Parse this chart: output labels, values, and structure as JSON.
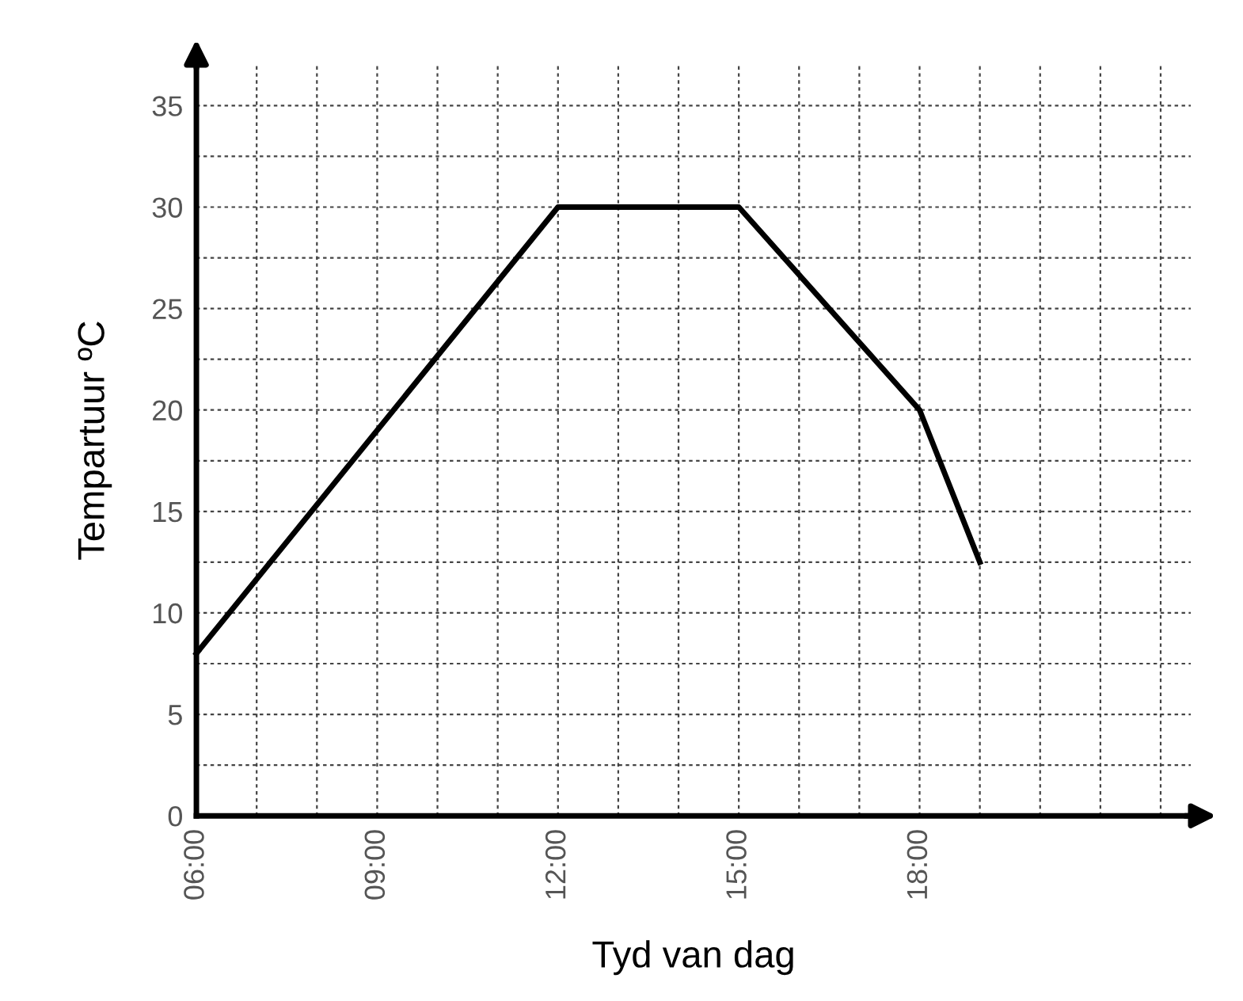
{
  "chart_data": {
    "type": "line",
    "xlabel": "Tyd van dag",
    "ylabel": "Tempartuur ºC",
    "x": [
      6,
      12,
      15,
      18,
      19
    ],
    "values": [
      8,
      30,
      30,
      20,
      12.5
    ],
    "color": "#000000",
    "xlim": [
      6,
      22.5
    ],
    "ylim": [
      0,
      37
    ],
    "xticks": [
      {
        "value": 6,
        "label": "06:00"
      },
      {
        "value": 7,
        "label": null
      },
      {
        "value": 8,
        "label": null
      },
      {
        "value": 9,
        "label": "09:00"
      },
      {
        "value": 10,
        "label": null
      },
      {
        "value": 11,
        "label": null
      },
      {
        "value": 12,
        "label": "12:00"
      },
      {
        "value": 13,
        "label": null
      },
      {
        "value": 14,
        "label": null
      },
      {
        "value": 15,
        "label": "15:00"
      },
      {
        "value": 16,
        "label": null
      },
      {
        "value": 17,
        "label": null
      },
      {
        "value": 18,
        "label": "18:00"
      },
      {
        "value": 19,
        "label": null
      },
      {
        "value": 20,
        "label": null
      },
      {
        "value": 21,
        "label": null
      },
      {
        "value": 22,
        "label": null
      }
    ],
    "yticks": [
      0,
      {
        "value": 2.5,
        "label": null
      },
      5,
      {
        "value": 7.5,
        "label": null
      },
      10,
      {
        "value": 12.5,
        "label": null
      },
      15,
      {
        "value": 17.5,
        "label": null
      },
      20,
      {
        "value": 22.5,
        "label": null
      },
      25,
      {
        "value": 27.5,
        "label": null
      },
      30,
      {
        "value": 32.5,
        "label": null
      },
      35
    ],
    "grid": true,
    "marker": "none",
    "line_style": "solid",
    "legend": false
  }
}
